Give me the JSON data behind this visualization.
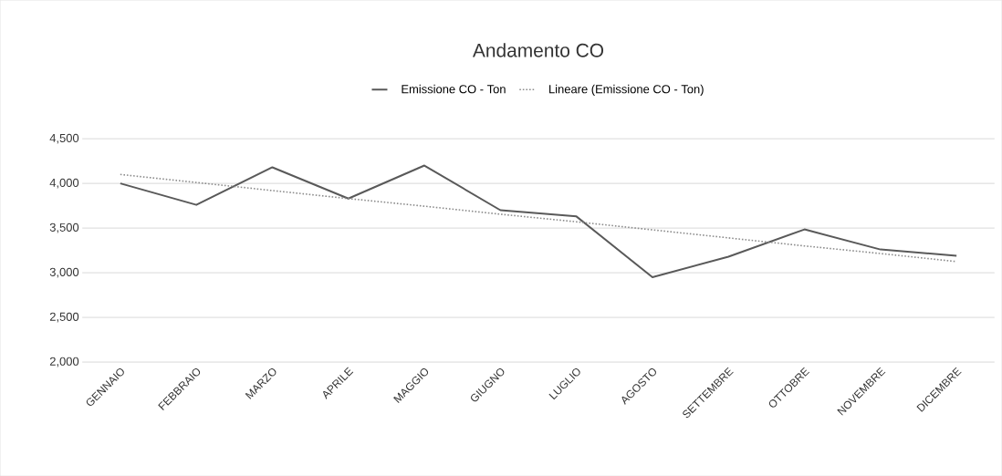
{
  "chart_data": {
    "type": "line",
    "title": "Andamento CO",
    "categories": [
      "GENNAIO",
      "FEBBRAIO",
      "MARZO",
      "APRILE",
      "MAGGIO",
      "GIUGNO",
      "LUGLIO",
      "AGOSTO",
      "SETTEMBRE",
      "OTTOBRE",
      "NOVEMBRE",
      "DICEMBRE"
    ],
    "series": [
      {
        "name": "Emissione CO - Ton",
        "color": "#595959",
        "line_style": "solid",
        "values": [
          4000,
          3760,
          4180,
          3830,
          4200,
          3700,
          3630,
          2950,
          3180,
          3485,
          3260,
          3190
        ]
      },
      {
        "name": "Lineare (Emissione CO - Ton)",
        "color": "#8c8c8c",
        "line_style": "dotted",
        "values": [
          4100,
          4010,
          3920,
          3830,
          3745,
          3655,
          3570,
          3480,
          3390,
          3300,
          3215,
          3125
        ]
      }
    ],
    "ylim": [
      2000,
      4500
    ],
    "yticks": [
      {
        "value": 2000,
        "label": "2,000"
      },
      {
        "value": 2500,
        "label": "2,500"
      },
      {
        "value": 3000,
        "label": "3,000"
      },
      {
        "value": 3500,
        "label": "3,500"
      },
      {
        "value": 4000,
        "label": "4,000"
      },
      {
        "value": 4500,
        "label": "4,500"
      }
    ],
    "grid": "y",
    "legend": "top"
  }
}
